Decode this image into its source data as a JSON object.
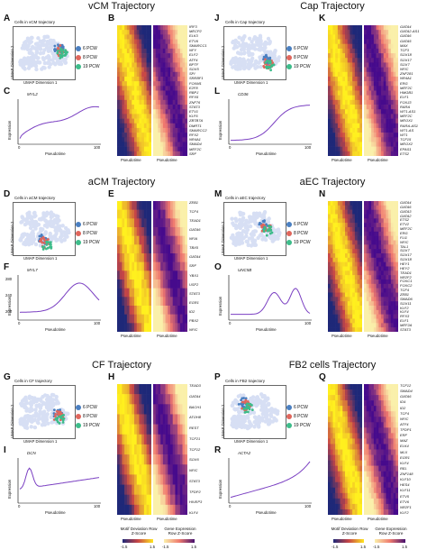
{
  "colors": {
    "pcw6": "#4a7fc1",
    "pcw8": "#e0665c",
    "pcw19": "#3dbc8a",
    "cells": "#d7dff4",
    "curve": "#7a3fc2"
  },
  "legend": [
    "6 PCW",
    "8 PCW",
    "19 PCW"
  ],
  "umap_axes": {
    "x": "UMAP Dimension 1",
    "y": "UMAP Dimension 2"
  },
  "common": {
    "pseudotime": "Pseudotime",
    "expression": "Expression"
  },
  "panels": [
    {
      "traj": "vCM Trajectory",
      "a": "A",
      "b": "B",
      "c": "C",
      "cells": "Cells in vCM trajectory",
      "gene": "MYL2",
      "ticks_x": [
        "0",
        "100"
      ],
      "ticks_y": [],
      "genes": [
        "IRF3",
        "MECP2",
        "ELK3",
        "ETV6",
        "SMARCC1",
        "NFY",
        "ELF2",
        "ATF4",
        "BPTF",
        "SOX5",
        "SPI",
        "SREBF1",
        "FOXM1",
        "E2F8",
        "RBPJ",
        "RFX5",
        "ZNF76",
        "STAT3",
        "ETV1",
        "KLF6",
        "ZBTB7A",
        "DMRT1",
        "SMARCC2",
        "RFX2",
        "NR4A1",
        "SMAD4",
        "MEF2C",
        "SRF"
      ]
    },
    {
      "traj": "Cap Trajectory",
      "a": "J",
      "b": "K",
      "c": "L",
      "cells": "Cells in Cap trajectory",
      "gene": "CD36",
      "ticks_x": [
        "0",
        "100"
      ],
      "ticks_y": [],
      "genes": [
        "GATA4",
        "GATA2-AS1",
        "GATA6",
        "GATA5",
        "MAX",
        "TCF3",
        "SOX18",
        "SOX17",
        "SOX7",
        "NFIC",
        "ZNF281",
        "NR4A1",
        "ERG",
        "MEF2C",
        "HMGB1",
        "ELF1",
        "FOXJ3",
        "RARA",
        "WT1-AS1",
        "MEF2C",
        "MEOX1",
        "RARA-AS1",
        "WT1-AS",
        "WT1",
        "TCF15",
        "MEOX2",
        "EPAS1",
        "ETS2"
      ]
    },
    {
      "traj": "aCM Trajectory",
      "a": "D",
      "b": "E",
      "c": "F",
      "cells": "Cells in aCM trajectory",
      "gene": "MYL7",
      "ticks_x": [
        "0",
        "100"
      ],
      "ticks_y": [
        "280",
        "240",
        "200"
      ],
      "genes": [
        "ZEB1",
        "TCF4",
        "TEAD1",
        "GATA6",
        "NFIA",
        "TBX5",
        "GATA4",
        "SRF",
        "YBX1",
        "USF2",
        "STAT3",
        "EGR1",
        "ID2",
        "PBX2",
        "NFIC"
      ]
    },
    {
      "traj": "aEC Trajectory",
      "a": "M",
      "b": "N",
      "c": "O",
      "cells": "Cells in aEC trajectory",
      "gene": "UNC5B",
      "ticks_x": [
        "0",
        "100"
      ],
      "ticks_y": [],
      "genes": [
        "GATA4",
        "GATA6",
        "GATA3",
        "GATA2",
        "ETS2",
        "ETV2",
        "MEF2C",
        "ERG",
        "FLI1",
        "NFIC",
        "TAL1",
        "SOX7",
        "SOX17",
        "SOX18",
        "HEY1",
        "HEY2",
        "TEAD1",
        "NR2F2",
        "FOXC1",
        "FOXC2",
        "TCF4",
        "ZEB1",
        "SMAD6",
        "SOX11",
        "KLF2",
        "KLF4",
        "RFX3",
        "ELF1",
        "MEF2A",
        "STAT3"
      ]
    },
    {
      "traj": "CF Trajectory",
      "a": "G",
      "b": "H",
      "c": "I",
      "cells": "Cells in CF trajectory",
      "gene": "DCN",
      "ticks_x": [
        "0",
        "100"
      ],
      "ticks_y": [],
      "genes": [
        "TEAD3",
        "GATA4",
        "BACH1",
        "ATOH8",
        "REST",
        "TCF21",
        "TCF12",
        "SOX6",
        "NFIC",
        "STAT3",
        "TFDP2",
        "HIVEP3",
        "KLF4"
      ]
    },
    {
      "traj": "FB2 cells Trajectory",
      "a": "P",
      "b": "Q",
      "c": "R",
      "cells": "Cells in FB2 trajectory",
      "gene": "ACTA2",
      "ticks_x": [
        "0",
        "100"
      ],
      "ticks_y": [],
      "genes": [
        "TCF12",
        "SMAD4",
        "GATA6",
        "ID4",
        "ID2",
        "TCF4",
        "NFIC",
        "ATF4",
        "TFDP1",
        "ERF",
        "MAZ",
        "ELK4",
        "MLX",
        "EGR1",
        "KLF4",
        "REL",
        "ZNF148",
        "KLF10",
        "HES4",
        "KLF11",
        "ETV5",
        "ETV6",
        "NR2F1",
        "KLF2"
      ]
    }
  ],
  "colorbars": [
    {
      "label": "Motif Deviation Row Z-Score",
      "lo": "-1.5",
      "hi": "1.5"
    },
    {
      "label": "Gene Expression Row Z-Score",
      "lo": "-1.5",
      "hi": "1.5"
    },
    {
      "label": "Motif Deviation Row Z-Score",
      "lo": "-1.5",
      "hi": "1.5"
    },
    {
      "label": "Gene Expression Row Z-Score",
      "lo": "-1.5",
      "hi": "1.5"
    }
  ]
}
